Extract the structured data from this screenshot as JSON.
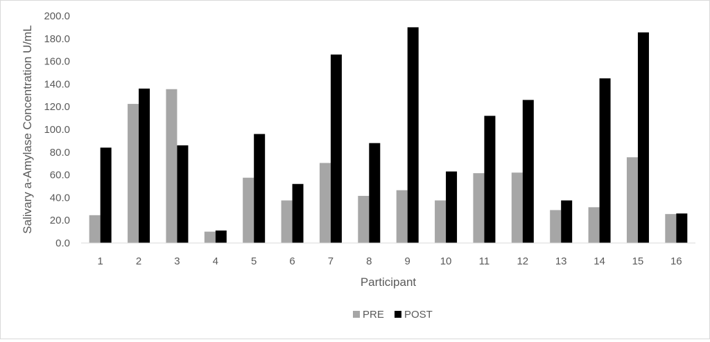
{
  "chart_data": {
    "type": "bar",
    "categories": [
      "1",
      "2",
      "3",
      "4",
      "5",
      "6",
      "7",
      "8",
      "9",
      "10",
      "11",
      "12",
      "13",
      "14",
      "15",
      "16"
    ],
    "series": [
      {
        "name": "PRE",
        "color": "#a6a6a6",
        "values": [
          24.5,
          122.5,
          135.5,
          10.0,
          57.5,
          37.5,
          70.5,
          41.5,
          46.5,
          37.5,
          61.5,
          62.0,
          29.0,
          31.5,
          75.5,
          25.5
        ]
      },
      {
        "name": "POST",
        "color": "#000000",
        "values": [
          84.0,
          136.0,
          86.0,
          11.0,
          96.0,
          52.0,
          166.0,
          88.0,
          190.0,
          63.0,
          112.0,
          126.0,
          37.5,
          145.0,
          185.5,
          26.0
        ]
      }
    ],
    "xlabel": "Participant",
    "ylabel": "Salivary a-Amylase Concentration U/mL",
    "ylim": [
      0,
      200
    ],
    "yticks": [
      "0.0",
      "20.0",
      "40.0",
      "60.0",
      "80.0",
      "100.0",
      "120.0",
      "140.0",
      "160.0",
      "180.0",
      "200.0"
    ],
    "grid": false,
    "legend_position": "bottom"
  }
}
